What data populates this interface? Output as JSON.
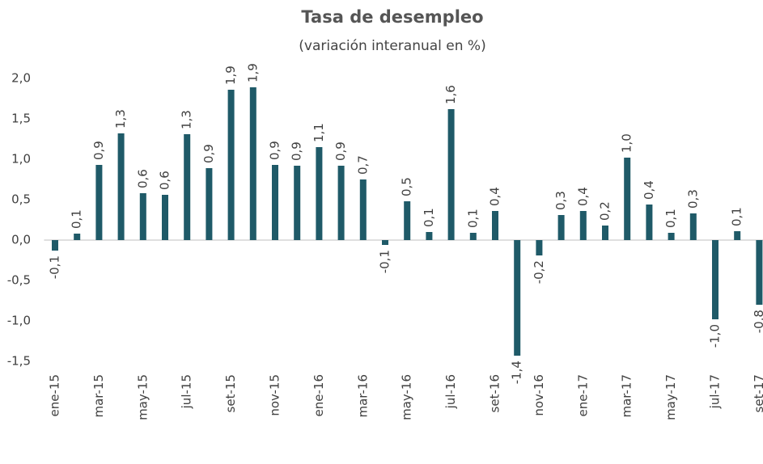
{
  "chart_data": {
    "type": "bar",
    "title": "Tasa de desempleo",
    "subtitle": "(variación interanual en %)",
    "categories": [
      "ene-15",
      null,
      "mar-15",
      null,
      "may-15",
      null,
      "jul-15",
      null,
      "set-15",
      null,
      "nov-15",
      null,
      "ene-16",
      null,
      "mar-16",
      null,
      "may-16",
      null,
      "jul-16",
      null,
      "set-16",
      null,
      "nov-16",
      null,
      "ene-17",
      null,
      "mar-17",
      null,
      "may-17",
      null,
      "jul-17",
      null,
      "set-17"
    ],
    "values": [
      -0.13,
      0.08,
      0.93,
      1.32,
      0.58,
      0.56,
      1.31,
      0.89,
      1.86,
      1.89,
      0.93,
      0.92,
      1.15,
      0.92,
      0.75,
      -0.06,
      0.48,
      0.1,
      1.62,
      0.09,
      0.36,
      -1.43,
      -0.19,
      0.31,
      0.36,
      0.18,
      1.02,
      0.44,
      0.09,
      0.33,
      -0.98,
      0.11,
      -0.8
    ],
    "value_labels": [
      "-0,1",
      "0,1",
      "0,9",
      "1,3",
      "0,6",
      "0,6",
      "1,3",
      "0,9",
      "1,9",
      "1,9",
      "0,9",
      "0,9",
      "1,1",
      "0,9",
      "0,7",
      "-0,1",
      "0,5",
      "0,1",
      "1,6",
      "0,1",
      "0,4",
      "-1,4",
      "-0,2",
      "0,3",
      "0,4",
      "0,2",
      "1,0",
      "0,4",
      "0,1",
      "0,3",
      "-1,0",
      "0,1",
      "-0,8"
    ],
    "color": "#1f5a68",
    "ylim": [
      -1.5,
      2.0
    ],
    "yticks": [
      {
        "value": -1.5,
        "label": "-1,5"
      },
      {
        "value": -1.0,
        "label": "-1,0"
      },
      {
        "value": -0.5,
        "label": "-0,5"
      },
      {
        "value": 0,
        "label": "0,0"
      },
      {
        "value": 0.5,
        "label": "0,5"
      },
      {
        "value": 1.0,
        "label": "1,0"
      },
      {
        "value": 1.5,
        "label": "1,5"
      },
      {
        "value": 2.0,
        "label": "2,0"
      }
    ],
    "grid": false
  }
}
